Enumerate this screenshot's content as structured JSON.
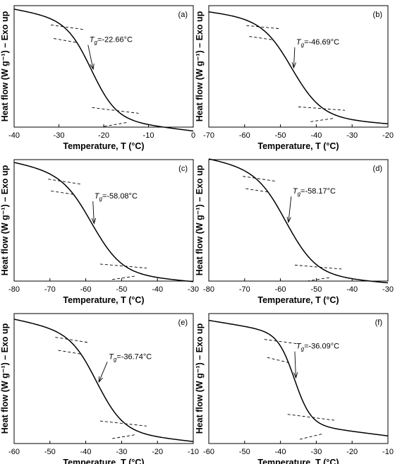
{
  "figure": {
    "ylabel": "Heat flow (W g⁻¹) – Exo up",
    "xlabel": "Temperature, T (°C)"
  },
  "chart_data": [
    {
      "type": "line",
      "panel": "(a)",
      "title": "",
      "xlabel": "Temperature, T (°C)",
      "ylabel": "Heat flow (W g⁻¹) – Exo up",
      "xlim": [
        -40,
        0
      ],
      "xticks": [
        -40,
        -30,
        -20,
        -10,
        0
      ],
      "ylim": [
        0,
        1
      ],
      "tg": -22.66,
      "tg_label": "=-22.66°C",
      "tg_symbol": "T",
      "tg_sub": "g",
      "onset": -29,
      "endset": -17,
      "high": 0.86,
      "low": 0.07,
      "pre_slope": 0.0065,
      "post_slope": 0.0045,
      "text_pos": [
        -23.5,
        0.7
      ]
    },
    {
      "type": "line",
      "panel": "(b)",
      "title": "",
      "xlabel": "Temperature, T (°C)",
      "ylabel": "Heat flow (W g⁻¹) – Exo up",
      "xlim": [
        -70,
        -20
      ],
      "xticks": [
        -70,
        -60,
        -50,
        -40,
        -30,
        -20
      ],
      "ylim": [
        0,
        1
      ],
      "tg": -46.69,
      "tg_label": "=-46.69°C",
      "tg_symbol": "T",
      "tg_sub": "g",
      "onset": -56,
      "endset": -38,
      "high": 0.87,
      "low": 0.085,
      "pre_slope": 0.0035,
      "post_slope": 0.0022,
      "text_pos": [
        -46,
        0.68
      ]
    },
    {
      "type": "line",
      "panel": "(c)",
      "title": "",
      "xlabel": "Temperature, T (°C)",
      "ylabel": "Heat flow (W g⁻¹) – Exo up",
      "xlim": [
        -80,
        -30
      ],
      "xticks": [
        -80,
        -70,
        -60,
        -50,
        -40,
        -30
      ],
      "ylim": [
        0,
        1
      ],
      "tg": -58.08,
      "tg_label": "=-58.08°C",
      "tg_symbol": "T",
      "tg_sub": "g",
      "onset": -67,
      "endset": -49,
      "high": 0.86,
      "low": 0.065,
      "pre_slope": 0.0055,
      "post_slope": 0.0025,
      "text_pos": [
        -58,
        0.68
      ]
    },
    {
      "type": "line",
      "panel": "(d)",
      "title": "",
      "xlabel": "Temperature, T (°C)",
      "ylabel": "Heat flow (W g⁻¹) – Exo up",
      "xlim": [
        -80,
        -30
      ],
      "xticks": [
        -80,
        -70,
        -60,
        -50,
        -40,
        -30
      ],
      "ylim": [
        0,
        1
      ],
      "tg": -58.17,
      "tg_label": "=-58.17°C",
      "tg_symbol": "T",
      "tg_sub": "g",
      "onset": -67,
      "endset": -49,
      "high": 0.89,
      "low": 0.055,
      "pre_slope": 0.0055,
      "post_slope": 0.0025,
      "text_pos": [
        -57,
        0.72
      ]
    },
    {
      "type": "line",
      "panel": "(e)",
      "title": "",
      "xlabel": "Temperature, T (°C)",
      "ylabel": "Heat flow (W g⁻¹) – Exo up",
      "xlim": [
        -60,
        -10
      ],
      "xticks": [
        -60,
        -50,
        -40,
        -30,
        -20,
        -10
      ],
      "ylim": [
        0,
        1
      ],
      "tg": -36.74,
      "tg_label": "=-36.74°C",
      "tg_symbol": "T",
      "tg_sub": "g",
      "onset": -45,
      "endset": -29,
      "high": 0.83,
      "low": 0.095,
      "pre_slope": 0.0055,
      "post_slope": 0.003,
      "text_pos": [
        -34,
        0.65
      ]
    },
    {
      "type": "line",
      "panel": "(f)",
      "title": "",
      "xlabel": "Temperature, T (°C)",
      "ylabel": "Heat flow (W g⁻¹) – Exo up",
      "xlim": [
        -60,
        -10
      ],
      "xticks": [
        -60,
        -50,
        -40,
        -30,
        -20,
        -10
      ],
      "ylim": [
        0,
        1
      ],
      "tg": -36.09,
      "tg_label": "=-36.09°C",
      "tg_symbol": "T",
      "tg_sub": "g",
      "onset": -41,
      "endset": -31,
      "high": 0.84,
      "low": 0.15,
      "pre_slope": 0.0045,
      "post_slope": 0.0035,
      "text_pos": [
        -36,
        0.73
      ]
    }
  ]
}
